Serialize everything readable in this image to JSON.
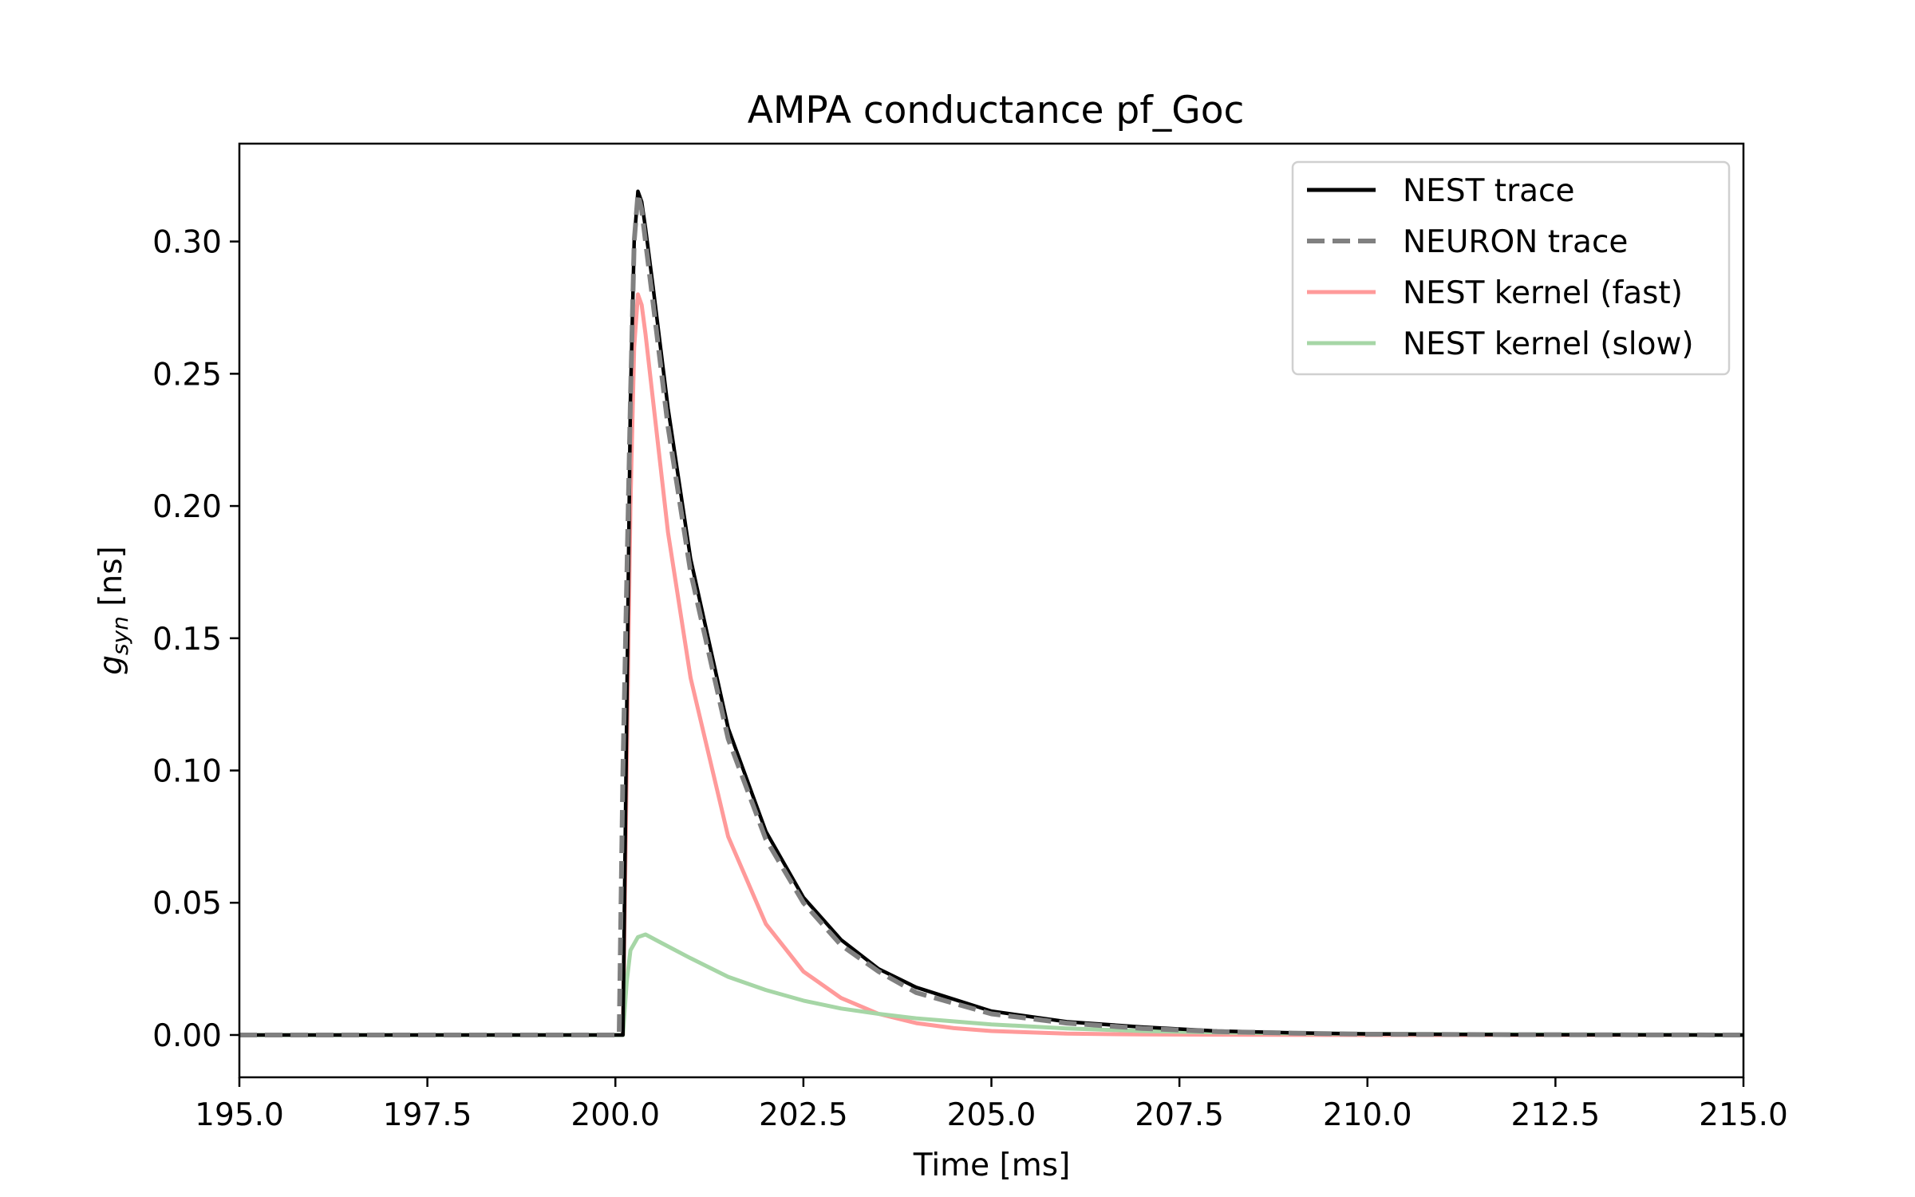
{
  "chart_data": {
    "type": "line",
    "title": "AMPA conductance pf_Goc",
    "xlabel": "Time [ms]",
    "ylabel": {
      "main": "g",
      "sub": "syn",
      "unit": " [ns]"
    },
    "xlim": [
      195.0,
      215.0
    ],
    "ylim": [
      -0.016,
      0.337
    ],
    "x_ticks": [
      195.0,
      197.5,
      200.0,
      202.5,
      205.0,
      207.5,
      210.0,
      212.5,
      215.0
    ],
    "x_tick_labels": [
      "195.0",
      "197.5",
      "200.0",
      "202.5",
      "205.0",
      "207.5",
      "210.0",
      "212.5",
      "215.0"
    ],
    "y_ticks": [
      0.0,
      0.05,
      0.1,
      0.15,
      0.2,
      0.25,
      0.3
    ],
    "y_tick_labels": [
      "0.00",
      "0.05",
      "0.10",
      "0.15",
      "0.20",
      "0.25",
      "0.30"
    ],
    "grid": false,
    "legend_position": "top-right",
    "series": [
      {
        "name": "NEST trace",
        "color": "#000000",
        "style": "solid",
        "x": [
          195.0,
          200.0,
          200.1,
          200.15,
          200.2,
          200.25,
          200.3,
          200.35,
          200.4,
          200.5,
          200.7,
          201.0,
          201.5,
          202.0,
          202.5,
          203.0,
          203.5,
          204.0,
          205.0,
          206.0,
          207.0,
          208.0,
          209.0,
          210.0,
          212.0,
          215.0
        ],
        "y": [
          0.0,
          0.0,
          0.0,
          0.12,
          0.24,
          0.3,
          0.319,
          0.315,
          0.305,
          0.283,
          0.237,
          0.18,
          0.116,
          0.077,
          0.052,
          0.036,
          0.025,
          0.018,
          0.009,
          0.005,
          0.003,
          0.0015,
          0.0008,
          0.0004,
          0.0001,
          0.0
        ]
      },
      {
        "name": "NEURON trace",
        "color": "#808080",
        "style": "dashed",
        "x": [
          195.0,
          200.0,
          200.05,
          200.1,
          200.2,
          200.25,
          200.3,
          200.35,
          200.4,
          200.5,
          200.7,
          201.0,
          201.5,
          202.0,
          202.5,
          203.0,
          203.5,
          204.0,
          205.0,
          206.0,
          207.0,
          208.0,
          209.0,
          210.0,
          212.0,
          215.0
        ],
        "y": [
          0.0,
          0.0,
          0.0,
          0.1,
          0.24,
          0.3,
          0.318,
          0.312,
          0.3,
          0.277,
          0.23,
          0.175,
          0.112,
          0.074,
          0.05,
          0.034,
          0.024,
          0.016,
          0.008,
          0.0045,
          0.0025,
          0.0013,
          0.0007,
          0.0003,
          0.0001,
          0.0
        ]
      },
      {
        "name": "NEST kernel (fast)",
        "color": "#ff9a9a",
        "style": "solid",
        "x": [
          195.0,
          200.0,
          200.1,
          200.15,
          200.2,
          200.25,
          200.3,
          200.35,
          200.4,
          200.5,
          200.7,
          201.0,
          201.5,
          202.0,
          202.5,
          203.0,
          203.5,
          204.0,
          204.5,
          205.0,
          206.0,
          207.0,
          208.0,
          210.0,
          215.0
        ],
        "y": [
          0.0,
          0.0,
          0.0,
          0.1,
          0.2,
          0.26,
          0.28,
          0.276,
          0.265,
          0.24,
          0.19,
          0.135,
          0.075,
          0.042,
          0.024,
          0.014,
          0.008,
          0.0045,
          0.0026,
          0.0015,
          0.0005,
          0.0002,
          0.0001,
          0.0,
          0.0
        ]
      },
      {
        "name": "NEST kernel (slow)",
        "color": "#a6d6a6",
        "style": "solid",
        "x": [
          195.0,
          200.0,
          200.1,
          200.15,
          200.2,
          200.3,
          200.4,
          200.6,
          201.0,
          201.5,
          202.0,
          202.5,
          203.0,
          203.5,
          204.0,
          205.0,
          206.0,
          207.0,
          208.0,
          209.0,
          210.0,
          212.0,
          215.0
        ],
        "y": [
          0.0,
          0.0,
          0.0,
          0.02,
          0.032,
          0.037,
          0.038,
          0.035,
          0.029,
          0.022,
          0.017,
          0.013,
          0.01,
          0.008,
          0.0063,
          0.004,
          0.0025,
          0.0015,
          0.001,
          0.0006,
          0.0004,
          0.0002,
          0.0
        ]
      }
    ]
  }
}
